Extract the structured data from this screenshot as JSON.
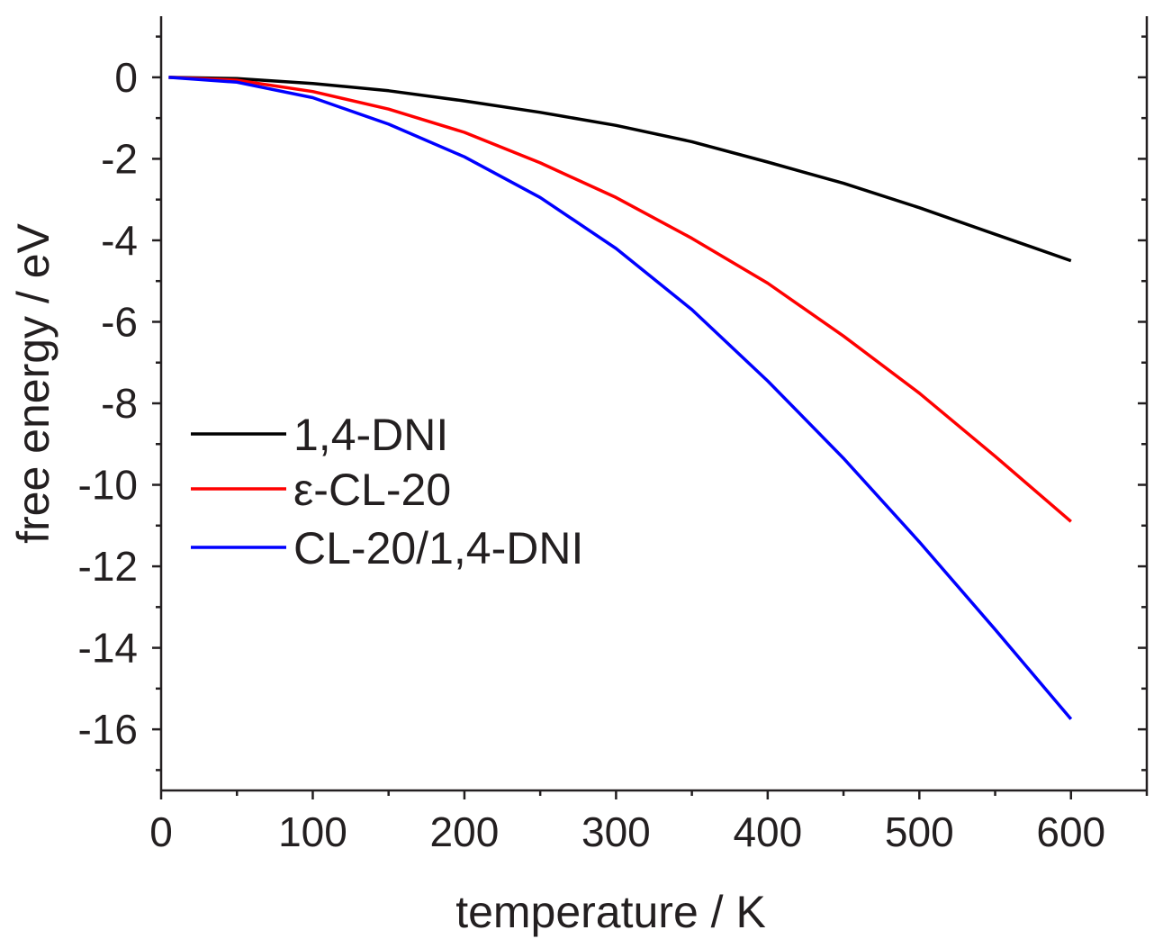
{
  "chart_data": {
    "type": "line",
    "title": "",
    "xlabel": "temperature / K",
    "ylabel": "free energy / eV",
    "xlim": [
      0,
      650
    ],
    "ylim": [
      -17.5,
      1.5
    ],
    "xticks": [
      0,
      100,
      200,
      300,
      400,
      500,
      600
    ],
    "yticks": [
      0,
      -2,
      -4,
      -6,
      -8,
      -10,
      -12,
      -14,
      -16
    ],
    "xtick_labels": [
      "0",
      "100",
      "200",
      "300",
      "400",
      "500",
      "600"
    ],
    "ytick_labels": [
      "0",
      "-2",
      "-4",
      "-6",
      "-8",
      "-10",
      "-12",
      "-14",
      "-16"
    ],
    "grid": false,
    "legend_position": "left-middle",
    "series": [
      {
        "name": "1,4-DNI",
        "color": "#000000",
        "x": [
          5,
          50,
          100,
          150,
          200,
          250,
          300,
          350,
          400,
          450,
          500,
          550,
          600
        ],
        "y": [
          0,
          -0.03,
          -0.15,
          -0.33,
          -0.58,
          -0.86,
          -1.18,
          -1.58,
          -2.08,
          -2.6,
          -3.2,
          -3.85,
          -4.5
        ]
      },
      {
        "name": "ε-CL-20",
        "color": "#ff0000",
        "x": [
          5,
          50,
          100,
          150,
          200,
          250,
          300,
          350,
          400,
          450,
          500,
          550,
          600
        ],
        "y": [
          0,
          -0.07,
          -0.35,
          -0.78,
          -1.35,
          -2.1,
          -2.95,
          -3.95,
          -5.05,
          -6.35,
          -7.75,
          -9.3,
          -10.9
        ]
      },
      {
        "name": "CL-20/1,4-DNI",
        "color": "#0000ff",
        "x": [
          5,
          50,
          100,
          150,
          200,
          250,
          300,
          350,
          400,
          450,
          500,
          550,
          600
        ],
        "y": [
          0,
          -0.12,
          -0.5,
          -1.15,
          -1.95,
          -2.95,
          -4.2,
          -5.7,
          -7.45,
          -9.35,
          -11.4,
          -13.55,
          -15.75
        ]
      }
    ]
  }
}
